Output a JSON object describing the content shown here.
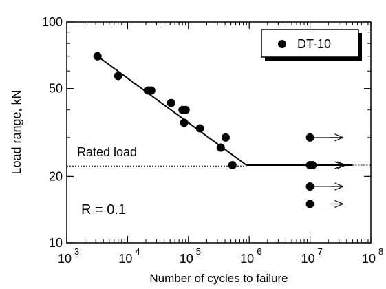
{
  "chart_data": {
    "type": "scatter",
    "xscale": "log",
    "yscale": "log",
    "xlim": [
      1000,
      100000000
    ],
    "ylim": [
      10,
      100
    ],
    "xlabel": "Number of cycles to failure",
    "ylabel": "Load  range,   kN",
    "x_ticks": [
      {
        "value": 1000,
        "base": "10",
        "exp": "3"
      },
      {
        "value": 10000,
        "base": "10",
        "exp": "4"
      },
      {
        "value": 100000,
        "base": "10",
        "exp": "5"
      },
      {
        "value": 1000000,
        "base": "10",
        "exp": "6"
      },
      {
        "value": 10000000,
        "base": "10",
        "exp": "7"
      },
      {
        "value": 100000000,
        "base": "10",
        "exp": "8"
      }
    ],
    "y_ticks": [
      {
        "value": 10,
        "label": "10"
      },
      {
        "value": 20,
        "label": "20"
      },
      {
        "value": 50,
        "label": "50"
      },
      {
        "value": 100,
        "label": "100"
      }
    ],
    "legend": {
      "label": "DT-10",
      "placement": "top-right"
    },
    "series": [
      {
        "name": "DT-10",
        "marker": "filled-circle",
        "color": "#000000",
        "points": [
          {
            "x": 3200,
            "y": 70
          },
          {
            "x": 7000,
            "y": 57
          },
          {
            "x": 22000,
            "y": 49
          },
          {
            "x": 24500,
            "y": 49
          },
          {
            "x": 52000,
            "y": 43
          },
          {
            "x": 80000,
            "y": 40
          },
          {
            "x": 90000,
            "y": 40
          },
          {
            "x": 85000,
            "y": 35
          },
          {
            "x": 155000,
            "y": 33
          },
          {
            "x": 340000,
            "y": 27
          },
          {
            "x": 410000,
            "y": 30
          },
          {
            "x": 530000,
            "y": 22.5
          }
        ]
      },
      {
        "name": "runout",
        "marker": "filled-circle-arrow",
        "color": "#000000",
        "points": [
          {
            "x": 10000000,
            "y": 30
          },
          {
            "x": 10000000,
            "y": 22.5
          },
          {
            "x": 11000000,
            "y": 22.5
          },
          {
            "x": 10000000,
            "y": 18
          },
          {
            "x": 10000000,
            "y": 15
          }
        ]
      }
    ],
    "fit_line": {
      "sloped": {
        "x": [
          3200,
          900000
        ],
        "y": [
          70,
          22.5
        ]
      },
      "horizontal": {
        "x": [
          900000,
          50000000
        ],
        "y": 22.5
      }
    },
    "rated_load": {
      "label": "Rated load",
      "x": [
        1000,
        900000
      ],
      "y": 22.3,
      "style": "dotted"
    },
    "extension_dotted": {
      "x": [
        50000000,
        100000000
      ],
      "y": 22.5
    },
    "annotation": {
      "text": "R = 0.1"
    }
  }
}
